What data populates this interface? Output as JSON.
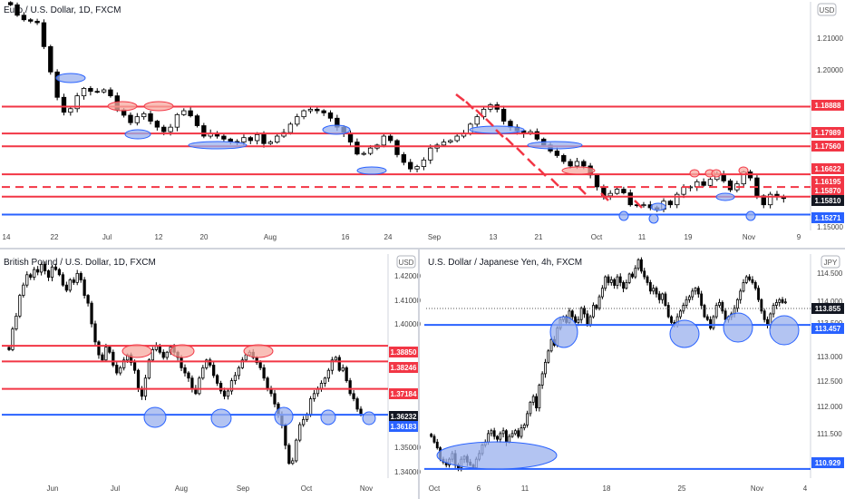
{
  "colors": {
    "resistance": "#f23645",
    "support": "#2962ff",
    "bull_fill": "#ffffff",
    "bear_fill": "#000000",
    "circle_fill": "#9ab0ee",
    "red_oval_fill": "#f7a9a0",
    "grid": "#f0f3fa",
    "axis_text": "#131722"
  },
  "chart_data": [
    {
      "id": "eurusd",
      "type": "candlestick",
      "title": "Euro / U.S. Dollar, 1D, FXCM",
      "currency_badge": "USD",
      "x_ticks": [
        "14",
        "22",
        "Jul",
        "12",
        "20",
        "Aug",
        "16",
        "24",
        "Sep",
        "13",
        "21",
        "Oct",
        "11",
        "19",
        "Nov",
        "9"
      ],
      "y_ticks": [
        "1.21000",
        "1.20000",
        "1.15000"
      ],
      "ylim": [
        1.148,
        1.224
      ],
      "resistance_levels": [
        1.18888,
        1.17989,
        1.1756,
        1.16622,
        1.1587
      ],
      "dashed_levels": [
        1.16195
      ],
      "support_levels": [
        1.15271
      ],
      "level_labels": [
        "1.18888",
        "1.17989",
        "1.17560",
        "1.16622",
        "1.16195",
        "1.15870",
        "1.15810",
        "1.15271"
      ],
      "last_value": "1.15810",
      "closes": [
        1.223,
        1.2195,
        1.218,
        1.2175,
        1.217,
        1.209,
        1.2005,
        1.192,
        1.187,
        1.1882,
        1.1925,
        1.195,
        1.194,
        1.1938,
        1.1945,
        1.1925,
        1.1878,
        1.186,
        1.1835,
        1.1855,
        1.1865,
        1.184,
        1.182,
        1.1805,
        1.182,
        1.1862,
        1.1875,
        1.1858,
        1.1825,
        1.179,
        1.18,
        1.179,
        1.178,
        1.1772,
        1.177,
        1.1785,
        1.1775,
        1.1795,
        1.1765,
        1.177,
        1.179,
        1.1802,
        1.183,
        1.1855,
        1.1875,
        1.188,
        1.1875,
        1.1868,
        1.185,
        1.182,
        1.18,
        1.177,
        1.173,
        1.1732,
        1.175,
        1.176,
        1.179,
        1.1775,
        1.1728,
        1.1702,
        1.168,
        1.1688,
        1.171,
        1.175,
        1.176,
        1.177,
        1.1775,
        1.179,
        1.18,
        1.183,
        1.1855,
        1.188,
        1.1895,
        1.188,
        1.184,
        1.182,
        1.1808,
        1.1798,
        1.1805,
        1.178,
        1.176,
        1.174,
        1.1725,
        1.1705,
        1.169,
        1.1705,
        1.169,
        1.166,
        1.162,
        1.159,
        1.1598,
        1.1612,
        1.16,
        1.156,
        1.1558,
        1.156,
        1.155,
        1.1545,
        1.1572,
        1.156,
        1.1595,
        1.1618,
        1.162,
        1.1637,
        1.1625,
        1.1645,
        1.1662,
        1.164,
        1.161,
        1.163,
        1.167,
        1.165,
        1.159,
        1.156,
        1.1595,
        1.1588,
        1.1581
      ]
    },
    {
      "id": "gbpusd",
      "type": "candlestick",
      "title": "British Pound / U.S. Dollar, 1D, FXCM",
      "currency_badge": "USD",
      "x_ticks": [
        "Jun",
        "Jul",
        "Aug",
        "Sep",
        "Oct",
        "Nov"
      ],
      "y_ticks": [
        "1.42000",
        "1.41000",
        "1.40000",
        "1.35000",
        "1.34000"
      ],
      "ylim": [
        1.338,
        1.424
      ],
      "resistance_levels": [
        1.3885,
        1.38246,
        1.37184
      ],
      "support_levels": [
        1.36183
      ],
      "level_labels": [
        "1.38850",
        "1.38246",
        "1.37184",
        "1.36232",
        "1.36183"
      ],
      "last_value": "1.36232",
      "closes": [
        1.387,
        1.395,
        1.4,
        1.408,
        1.412,
        1.416,
        1.415,
        1.418,
        1.417,
        1.42,
        1.4175,
        1.415,
        1.419,
        1.418,
        1.416,
        1.412,
        1.41,
        1.414,
        1.413,
        1.4165,
        1.414,
        1.408,
        1.405,
        1.397,
        1.39,
        1.385,
        1.383,
        1.388,
        1.386,
        1.381,
        1.378,
        1.38,
        1.383,
        1.385,
        1.382,
        1.379,
        1.372,
        1.369,
        1.376,
        1.383,
        1.387,
        1.3885,
        1.386,
        1.384,
        1.386,
        1.388,
        1.386,
        1.384,
        1.38,
        1.378,
        1.376,
        1.372,
        1.37,
        1.376,
        1.38,
        1.383,
        1.381,
        1.377,
        1.374,
        1.371,
        1.369,
        1.371,
        1.375,
        1.377,
        1.38,
        1.383,
        1.385,
        1.386,
        1.384,
        1.382,
        1.38,
        1.376,
        1.372,
        1.37,
        1.366,
        1.362,
        1.358,
        1.35,
        1.343,
        1.344,
        1.352,
        1.358,
        1.36,
        1.362,
        1.368,
        1.37,
        1.372,
        1.374,
        1.376,
        1.379,
        1.383,
        1.384,
        1.379,
        1.38,
        1.375,
        1.37,
        1.368,
        1.364,
        1.3623
      ]
    },
    {
      "id": "usdjpy",
      "type": "candlestick",
      "title": "U.S. Dollar / Japanese Yen, 4h, FXCM",
      "currency_badge": "JPY",
      "x_ticks": [
        "Oct",
        "6",
        "11",
        "18",
        "25",
        "Nov",
        "4"
      ],
      "y_ticks": [
        "114.500",
        "114.000",
        "113.500",
        "113.000",
        "112.500",
        "112.000",
        "111.500"
      ],
      "ylim": [
        110.8,
        114.7
      ],
      "support_levels": [
        113.457,
        110.929
      ],
      "level_labels": [
        "113.855",
        "113.457",
        "110.929"
      ],
      "last_value": "113.855",
      "closes": [
        111.5,
        111.4,
        111.3,
        111.1,
        111.05,
        111.0,
        111.1,
        111.2,
        111.0,
        110.95,
        111.1,
        111.15,
        111.05,
        111.0,
        110.95,
        111.1,
        111.2,
        111.35,
        111.4,
        111.55,
        111.6,
        111.5,
        111.45,
        111.55,
        111.6,
        111.4,
        111.5,
        111.55,
        111.6,
        111.5,
        111.65,
        111.7,
        111.9,
        112.1,
        112.2,
        112.0,
        112.4,
        112.6,
        112.8,
        113.0,
        113.2,
        113.1,
        113.4,
        113.55,
        113.6,
        113.5,
        113.7,
        113.6,
        113.5,
        113.55,
        113.75,
        113.65,
        113.45,
        113.6,
        113.8,
        113.75,
        113.95,
        114.1,
        114.3,
        114.2,
        114.25,
        114.15,
        114.3,
        114.2,
        114.1,
        114.2,
        114.35,
        114.3,
        114.45,
        114.6,
        114.4,
        114.3,
        114.2,
        114.05,
        114.1,
        114.0,
        113.9,
        114.0,
        113.8,
        113.6,
        113.5,
        113.45,
        113.6,
        113.7,
        113.8,
        113.9,
        113.95,
        114.05,
        114.1,
        114.0,
        113.8,
        113.6,
        113.55,
        113.4,
        113.6,
        113.8,
        113.85,
        113.7,
        113.55,
        113.6,
        113.65,
        113.75,
        113.9,
        114.05,
        114.2,
        114.3,
        114.25,
        114.2,
        114.1,
        113.9,
        113.7,
        113.55,
        113.45,
        113.65,
        113.8,
        113.85,
        113.9,
        113.85,
        113.86
      ]
    }
  ]
}
